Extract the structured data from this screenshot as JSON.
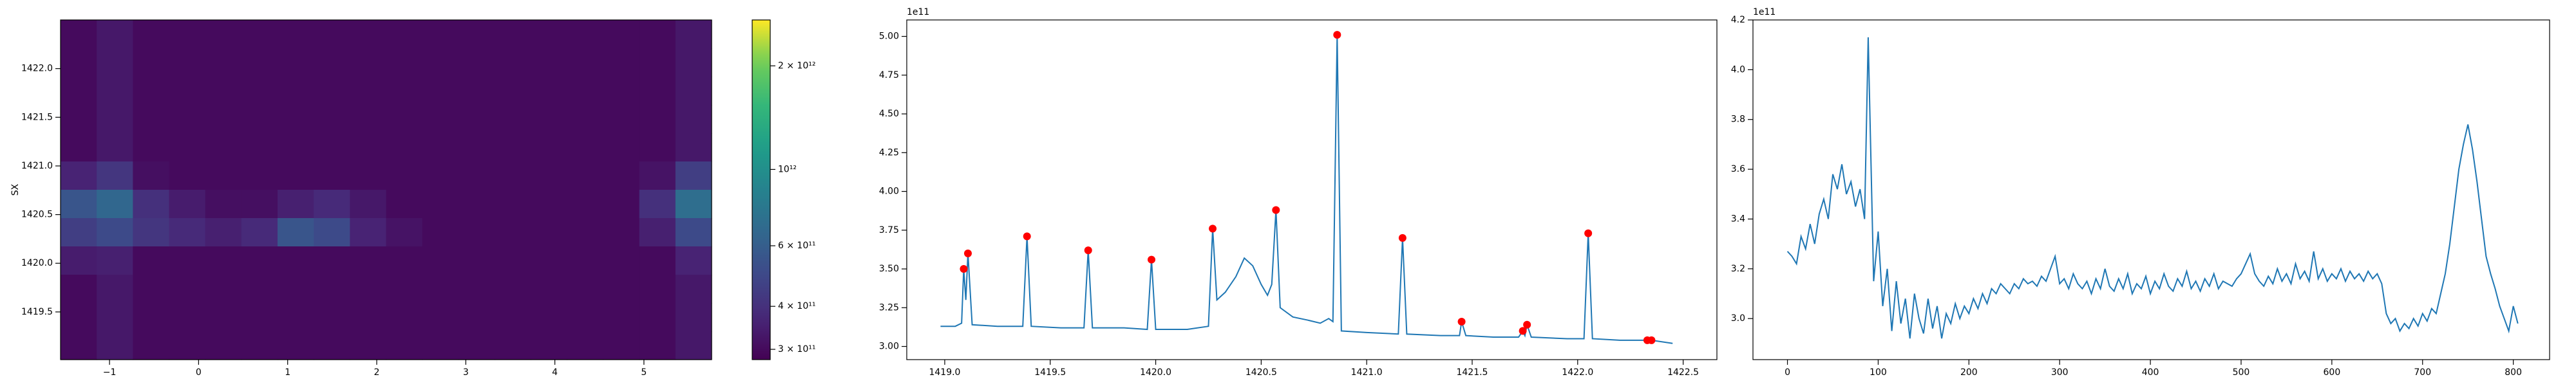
{
  "chart_data": [
    {
      "type": "heatmap",
      "ylabel": "SX",
      "colormap": "viridis",
      "xlim": [
        -1.55,
        5.76
      ],
      "ylim": [
        1419.01,
        1422.5
      ],
      "xticks": [
        {
          "value": -1,
          "label": "−1"
        },
        0,
        1,
        2,
        3,
        4,
        5
      ],
      "yticks": [
        1419.5,
        {
          "value": 1420,
          "label": "1420.0"
        },
        1420.5,
        {
          "value": 1421,
          "label": "1421.0"
        },
        1421.5,
        {
          "value": 1422,
          "label": "1422.0"
        }
      ],
      "z": [
        [
          300000000000.0,
          330000000000.0,
          300000000000.0,
          300000000000.0,
          300000000000.0,
          300000000000.0,
          300000000000.0,
          300000000000.0,
          300000000000.0,
          300000000000.0,
          300000000000.0,
          300000000000.0,
          300000000000.0,
          300000000000.0,
          300000000000.0,
          300000000000.0,
          300000000000.0,
          330000000000.0
        ],
        [
          300000000000.0,
          330000000000.0,
          300000000000.0,
          300000000000.0,
          300000000000.0,
          300000000000.0,
          300000000000.0,
          300000000000.0,
          300000000000.0,
          300000000000.0,
          300000000000.0,
          300000000000.0,
          300000000000.0,
          300000000000.0,
          300000000000.0,
          300000000000.0,
          300000000000.0,
          330000000000.0
        ],
        [
          300000000000.0,
          330000000000.0,
          300000000000.0,
          300000000000.0,
          300000000000.0,
          300000000000.0,
          300000000000.0,
          300000000000.0,
          300000000000.0,
          300000000000.0,
          300000000000.0,
          300000000000.0,
          300000000000.0,
          300000000000.0,
          300000000000.0,
          300000000000.0,
          300000000000.0,
          330000000000.0
        ],
        [
          300000000000.0,
          330000000000.0,
          300000000000.0,
          300000000000.0,
          300000000000.0,
          300000000000.0,
          300000000000.0,
          300000000000.0,
          300000000000.0,
          300000000000.0,
          300000000000.0,
          300000000000.0,
          300000000000.0,
          300000000000.0,
          300000000000.0,
          300000000000.0,
          300000000000.0,
          330000000000.0
        ],
        [
          300000000000.0,
          330000000000.0,
          300000000000.0,
          300000000000.0,
          300000000000.0,
          300000000000.0,
          300000000000.0,
          300000000000.0,
          300000000000.0,
          300000000000.0,
          300000000000.0,
          300000000000.0,
          300000000000.0,
          300000000000.0,
          300000000000.0,
          300000000000.0,
          300000000000.0,
          330000000000.0
        ],
        [
          360000000000.0,
          420000000000.0,
          310000000000.0,
          300000000000.0,
          300000000000.0,
          300000000000.0,
          300000000000.0,
          300000000000.0,
          300000000000.0,
          300000000000.0,
          300000000000.0,
          300000000000.0,
          300000000000.0,
          300000000000.0,
          300000000000.0,
          300000000000.0,
          320000000000.0,
          450000000000.0
        ],
        [
          550000000000.0,
          650000000000.0,
          400000000000.0,
          340000000000.0,
          310000000000.0,
          310000000000.0,
          350000000000.0,
          380000000000.0,
          330000000000.0,
          300000000000.0,
          300000000000.0,
          300000000000.0,
          300000000000.0,
          300000000000.0,
          300000000000.0,
          300000000000.0,
          400000000000.0,
          700000000000.0
        ],
        [
          450000000000.0,
          500000000000.0,
          420000000000.0,
          380000000000.0,
          350000000000.0,
          380000000000.0,
          550000000000.0,
          500000000000.0,
          360000000000.0,
          320000000000.0,
          300000000000.0,
          300000000000.0,
          300000000000.0,
          300000000000.0,
          300000000000.0,
          300000000000.0,
          350000000000.0,
          500000000000.0
        ],
        [
          340000000000.0,
          350000000000.0,
          300000000000.0,
          300000000000.0,
          300000000000.0,
          300000000000.0,
          300000000000.0,
          300000000000.0,
          300000000000.0,
          300000000000.0,
          300000000000.0,
          300000000000.0,
          300000000000.0,
          300000000000.0,
          300000000000.0,
          300000000000.0,
          300000000000.0,
          360000000000.0
        ],
        [
          300000000000.0,
          330000000000.0,
          300000000000.0,
          300000000000.0,
          300000000000.0,
          300000000000.0,
          300000000000.0,
          300000000000.0,
          300000000000.0,
          300000000000.0,
          300000000000.0,
          300000000000.0,
          300000000000.0,
          300000000000.0,
          300000000000.0,
          300000000000.0,
          300000000000.0,
          330000000000.0
        ],
        [
          300000000000.0,
          330000000000.0,
          300000000000.0,
          300000000000.0,
          300000000000.0,
          300000000000.0,
          300000000000.0,
          300000000000.0,
          300000000000.0,
          300000000000.0,
          300000000000.0,
          300000000000.0,
          300000000000.0,
          300000000000.0,
          300000000000.0,
          300000000000.0,
          300000000000.0,
          330000000000.0
        ],
        [
          300000000000.0,
          330000000000.0,
          300000000000.0,
          300000000000.0,
          300000000000.0,
          300000000000.0,
          300000000000.0,
          300000000000.0,
          300000000000.0,
          300000000000.0,
          300000000000.0,
          300000000000.0,
          300000000000.0,
          300000000000.0,
          300000000000.0,
          300000000000.0,
          300000000000.0,
          330000000000.0
        ]
      ],
      "colorbar": {
        "scale": "log",
        "lim": [
          280000000000.0,
          2720000000000.0
        ],
        "ticks": [
          {
            "value": 300000000000.0,
            "label": "3 × 10¹¹"
          },
          {
            "value": 400000000000.0,
            "label": "4 × 10¹¹"
          },
          {
            "value": 600000000000.0,
            "label": "6 × 10¹¹"
          },
          {
            "value": 1000000000000.0,
            "label": "10¹²"
          },
          {
            "value": 2000000000000.0,
            "label": "2 × 10¹²"
          }
        ]
      }
    },
    {
      "type": "line",
      "color": "#1f77b4",
      "offset_label": "1e11",
      "xlim": [
        1418.82,
        1422.66
      ],
      "ylim": [
        2.915,
        5.106
      ],
      "xticks": [
        {
          "value": 1419,
          "label": "1419.0"
        },
        1419.5,
        {
          "value": 1420,
          "label": "1420.0"
        },
        1420.5,
        {
          "value": 1421,
          "label": "1421.0"
        },
        1421.5,
        {
          "value": 1422,
          "label": "1422.0"
        },
        1422.5
      ],
      "yticks": [
        {
          "value": 3,
          "label": "3.00"
        },
        3.25,
        {
          "value": 3.5,
          "label": "3.50"
        },
        3.75,
        {
          "value": 4,
          "label": "4.00"
        },
        4.25,
        {
          "value": 4.5,
          "label": "4.50"
        },
        4.75,
        {
          "value": 5,
          "label": "5.00"
        }
      ],
      "x": [
        1418.98,
        1419.05,
        1419.08,
        1419.09,
        1419.1,
        1419.11,
        1419.13,
        1419.25,
        1419.37,
        1419.39,
        1419.41,
        1419.55,
        1419.66,
        1419.68,
        1419.7,
        1419.85,
        1419.96,
        1419.98,
        1420.0,
        1420.15,
        1420.25,
        1420.27,
        1420.29,
        1420.33,
        1420.38,
        1420.42,
        1420.46,
        1420.5,
        1420.53,
        1420.55,
        1420.57,
        1420.59,
        1420.65,
        1420.72,
        1420.78,
        1420.82,
        1420.84,
        1420.86,
        1420.88,
        1421.0,
        1421.15,
        1421.17,
        1421.19,
        1421.35,
        1421.44,
        1421.45,
        1421.47,
        1421.6,
        1421.72,
        1421.74,
        1421.75,
        1421.76,
        1421.78,
        1421.95,
        1422.03,
        1422.05,
        1422.07,
        1422.2,
        1422.33,
        1422.35,
        1422.45
      ],
      "values": [
        3.13,
        3.13,
        3.15,
        3.5,
        3.3,
        3.6,
        3.14,
        3.13,
        3.13,
        3.71,
        3.13,
        3.12,
        3.12,
        3.62,
        3.12,
        3.12,
        3.11,
        3.56,
        3.11,
        3.11,
        3.13,
        3.76,
        3.3,
        3.35,
        3.45,
        3.57,
        3.52,
        3.4,
        3.33,
        3.4,
        3.88,
        3.25,
        3.19,
        3.17,
        3.15,
        3.18,
        3.16,
        5.01,
        3.1,
        3.09,
        3.08,
        3.7,
        3.08,
        3.07,
        3.07,
        3.16,
        3.07,
        3.06,
        3.06,
        3.1,
        3.07,
        3.14,
        3.06,
        3.05,
        3.05,
        3.73,
        3.05,
        3.04,
        3.04,
        3.04,
        3.02
      ],
      "markers": {
        "color": "red",
        "x": [
          1419.09,
          1419.11,
          1419.39,
          1419.68,
          1419.98,
          1420.27,
          1420.57,
          1420.86,
          1421.17,
          1421.45,
          1421.74,
          1421.76,
          1422.05,
          1422.33,
          1422.35
        ],
        "values": [
          3.5,
          3.6,
          3.71,
          3.62,
          3.56,
          3.76,
          3.88,
          5.01,
          3.7,
          3.16,
          3.1,
          3.14,
          3.73,
          3.04,
          3.04
        ]
      }
    },
    {
      "type": "line",
      "color": "#1f77b4",
      "offset_label": "1e11",
      "xlim": [
        -38,
        840
      ],
      "ylim": [
        2.835,
        4.2
      ],
      "xticks": [
        0,
        100,
        200,
        300,
        400,
        500,
        600,
        700,
        800
      ],
      "yticks": [
        {
          "value": 3,
          "label": "3.0"
        },
        3.2,
        3.4,
        3.6,
        3.8,
        {
          "value": 4,
          "label": "4.0"
        },
        4.2
      ],
      "x": [
        0,
        5,
        10,
        15,
        20,
        25,
        30,
        35,
        40,
        45,
        50,
        55,
        60,
        65,
        70,
        75,
        80,
        85,
        89,
        95,
        100,
        105,
        110,
        115,
        120,
        125,
        130,
        135,
        140,
        145,
        150,
        155,
        160,
        165,
        170,
        175,
        180,
        185,
        190,
        195,
        200,
        205,
        210,
        215,
        220,
        225,
        230,
        235,
        240,
        245,
        250,
        255,
        260,
        265,
        270,
        275,
        280,
        285,
        290,
        295,
        300,
        305,
        310,
        315,
        320,
        325,
        330,
        335,
        340,
        345,
        350,
        355,
        360,
        365,
        370,
        375,
        380,
        385,
        390,
        395,
        400,
        405,
        410,
        415,
        420,
        425,
        430,
        435,
        440,
        445,
        450,
        455,
        460,
        465,
        470,
        475,
        480,
        485,
        490,
        495,
        500,
        505,
        510,
        515,
        520,
        525,
        530,
        535,
        540,
        545,
        550,
        555,
        560,
        565,
        570,
        575,
        580,
        585,
        590,
        595,
        600,
        605,
        610,
        615,
        620,
        625,
        630,
        635,
        640,
        645,
        650,
        655,
        660,
        665,
        670,
        675,
        680,
        685,
        690,
        695,
        700,
        705,
        710,
        715,
        720,
        725,
        730,
        735,
        740,
        745,
        750,
        755,
        760,
        765,
        770,
        775,
        780,
        785,
        790,
        795,
        800,
        805
      ],
      "values": [
        3.27,
        3.25,
        3.22,
        3.33,
        3.28,
        3.38,
        3.3,
        3.42,
        3.48,
        3.4,
        3.58,
        3.52,
        3.62,
        3.5,
        3.55,
        3.45,
        3.52,
        3.4,
        4.13,
        3.15,
        3.35,
        3.05,
        3.2,
        2.95,
        3.15,
        2.98,
        3.08,
        2.92,
        3.1,
        3.0,
        2.94,
        3.08,
        2.96,
        3.05,
        2.92,
        3.02,
        2.98,
        3.06,
        3.0,
        3.05,
        3.02,
        3.08,
        3.04,
        3.1,
        3.06,
        3.12,
        3.1,
        3.14,
        3.12,
        3.1,
        3.14,
        3.12,
        3.16,
        3.14,
        3.15,
        3.13,
        3.17,
        3.15,
        3.2,
        3.25,
        3.14,
        3.16,
        3.12,
        3.18,
        3.14,
        3.12,
        3.15,
        3.1,
        3.16,
        3.12,
        3.2,
        3.13,
        3.11,
        3.16,
        3.12,
        3.18,
        3.1,
        3.14,
        3.12,
        3.17,
        3.1,
        3.15,
        3.12,
        3.18,
        3.13,
        3.11,
        3.16,
        3.13,
        3.19,
        3.12,
        3.15,
        3.11,
        3.16,
        3.13,
        3.18,
        3.12,
        3.15,
        3.14,
        3.13,
        3.16,
        3.18,
        3.22,
        3.26,
        3.18,
        3.15,
        3.13,
        3.17,
        3.14,
        3.2,
        3.15,
        3.18,
        3.14,
        3.22,
        3.16,
        3.19,
        3.15,
        3.27,
        3.16,
        3.2,
        3.15,
        3.18,
        3.16,
        3.2,
        3.15,
        3.19,
        3.16,
        3.18,
        3.15,
        3.19,
        3.16,
        3.18,
        3.14,
        3.02,
        2.98,
        3.0,
        2.95,
        2.98,
        2.96,
        3.0,
        2.97,
        3.02,
        2.99,
        3.04,
        3.02,
        3.1,
        3.18,
        3.3,
        3.45,
        3.6,
        3.7,
        3.78,
        3.68,
        3.55,
        3.4,
        3.25,
        3.18,
        3.12,
        3.05,
        3.0,
        2.95,
        3.05,
        2.98
      ]
    }
  ]
}
